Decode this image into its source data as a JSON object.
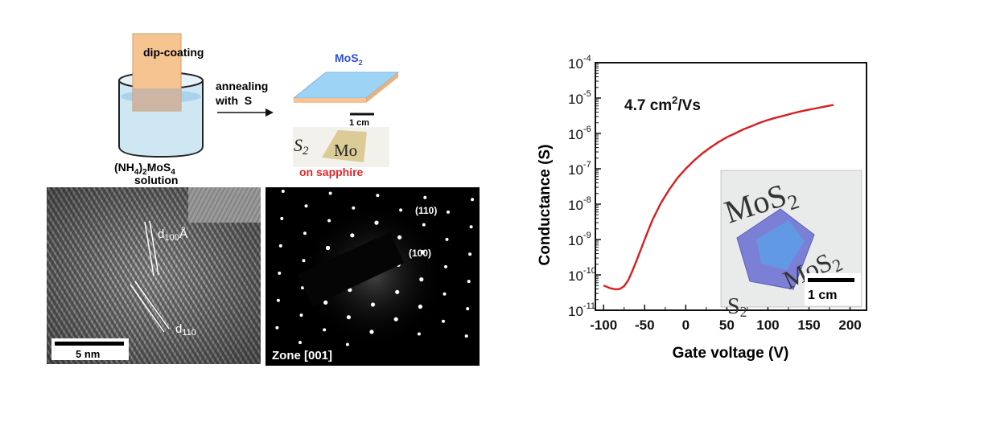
{
  "schematic": {
    "dip_coating": "dip-coating",
    "annealing_line1": "annealing",
    "annealing_line2": "with  S",
    "film_label_main": "MoS",
    "film_label_sub": "2",
    "scale_bar": "1 cm",
    "photo_text_left": "S",
    "photo_text_left_sub": "2",
    "photo_text_right": "Mo",
    "substrate": "on sapphire",
    "solution_line1_a": "(NH",
    "solution_line1_b": "4",
    "solution_line1_c": ")",
    "solution_line1_d": "2",
    "solution_line1_e": "MoS",
    "solution_line1_f": "4",
    "solution_line2": "solution"
  },
  "tem": {
    "d100_main": "d",
    "d100_sub": "100",
    "d100_unit": "Å",
    "d110_main": "d",
    "d110_sub": "110",
    "scale_bar": "5 nm"
  },
  "saed": {
    "spot_110": "(110)",
    "spot_100": "(100)",
    "zone": "Zone [001]"
  },
  "chart_data": {
    "type": "line",
    "xlabel": "Gate voltage (V)",
    "ylabel": "Conductance (S)",
    "xlim": [
      -110,
      220
    ],
    "ylim_log10": [
      -11,
      -4
    ],
    "log_y": true,
    "xticks": [
      "-100",
      "-50",
      "0",
      "50",
      "100",
      "150",
      "200"
    ],
    "yticks": [
      {
        "base": "10",
        "exp": "-11"
      },
      {
        "base": "10",
        "exp": "-10"
      },
      {
        "base": "10",
        "exp": "-9"
      },
      {
        "base": "10",
        "exp": "-8"
      },
      {
        "base": "10",
        "exp": "-7"
      },
      {
        "base": "10",
        "exp": "-6"
      },
      {
        "base": "10",
        "exp": "-5"
      },
      {
        "base": "10",
        "exp": "-4"
      }
    ],
    "annotation": {
      "value": "4.7 cm",
      "sup": "2",
      "unit": "/Vs"
    },
    "inset": {
      "text_top": "MoS",
      "text_top_sub": "2",
      "text_right": "MoS",
      "text_right_sub": "2",
      "text_bottom": "S",
      "text_bottom_sub": "2",
      "scale_bar": "1 cm"
    },
    "series": [
      {
        "color": "#d81f1f",
        "x": [
          -100,
          -92,
          -85,
          -80,
          -75,
          -70,
          -65,
          -60,
          -55,
          -50,
          -45,
          -40,
          -30,
          -20,
          -10,
          0,
          10,
          20,
          30,
          40,
          50,
          60,
          70,
          80,
          90,
          100,
          110,
          120,
          130,
          140,
          150,
          160,
          170,
          180
        ],
        "y": [
          5e-11,
          4.2e-11,
          3.9e-11,
          4e-11,
          4.8e-11,
          7e-11,
          1.3e-10,
          2.5e-10,
          5e-10,
          1e-09,
          2e-09,
          3.8e-09,
          1.1e-08,
          2.6e-08,
          5.5e-08,
          1e-07,
          1.7e-07,
          2.7e-07,
          4e-07,
          5.7e-07,
          7.8e-07,
          1e-06,
          1.3e-06,
          1.6e-06,
          2e-06,
          2.4e-06,
          2.8e-06,
          3.2e-06,
          3.7e-06,
          4.2e-06,
          4.7e-06,
          5.2e-06,
          5.8e-06,
          6.4e-06
        ]
      }
    ]
  }
}
